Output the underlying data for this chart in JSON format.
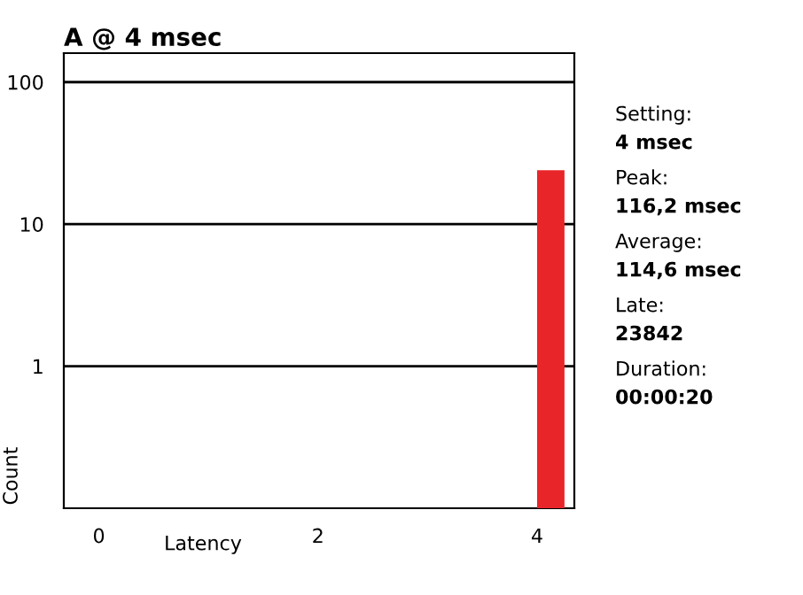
{
  "chart_data": {
    "type": "histogram",
    "title": "A @ 4 msec",
    "xlabel": "Latency",
    "ylabel": "Count",
    "bins": [
      4,
      4.25
    ],
    "values": [
      24
    ],
    "color": "#e8262a",
    "xlim": [
      -0.32,
      4.34
    ],
    "xticks": [
      0,
      2,
      4
    ],
    "ylim": [
      0.1,
      160
    ],
    "yticks": [
      1,
      10,
      100
    ],
    "log": "y",
    "grid": "y",
    "annotations": [
      "Setting:",
      "4 msec",
      "Peak:",
      "116,2 msec",
      "Average:",
      "114,6 msec",
      "Late:",
      "23842",
      "Duration:",
      "00:00:20"
    ]
  }
}
